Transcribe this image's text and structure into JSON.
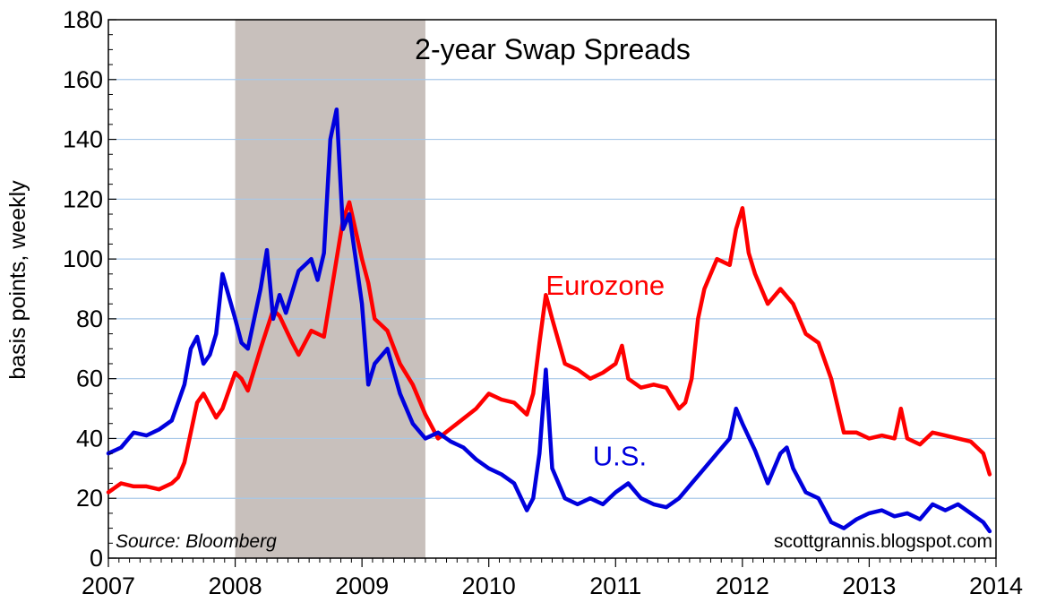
{
  "chart_data": {
    "type": "line",
    "title": "2-year Swap Spreads",
    "ylabel": "basis points, weekly",
    "xlabel": "",
    "xlim": [
      2007,
      2014
    ],
    "ylim": [
      0,
      180
    ],
    "x_ticks": [
      "2007",
      "2008",
      "2009",
      "2010",
      "2011",
      "2012",
      "2013",
      "2014"
    ],
    "y_ticks": [
      "0",
      "20",
      "40",
      "60",
      "80",
      "100",
      "120",
      "140",
      "160",
      "180"
    ],
    "grid": "horizontal",
    "shaded_region": [
      2008.0,
      2009.5
    ],
    "annotations": {
      "source": "Source: Bloomberg",
      "credit": "scottgrannis.blogspot.com"
    },
    "colors": {
      "eurozone": "#ff0000",
      "us": "#0000dd",
      "shade": "#c8c0bc",
      "grid": "#a8c8e8"
    },
    "series": [
      {
        "name": "Eurozone",
        "color": "#ff0000",
        "x": [
          2007.0,
          2007.1,
          2007.2,
          2007.3,
          2007.4,
          2007.5,
          2007.55,
          2007.6,
          2007.7,
          2007.75,
          2007.85,
          2007.9,
          2008.0,
          2008.05,
          2008.1,
          2008.2,
          2008.3,
          2008.35,
          2008.45,
          2008.5,
          2008.6,
          2008.7,
          2008.8,
          2008.85,
          2008.9,
          2009.0,
          2009.05,
          2009.1,
          2009.2,
          2009.3,
          2009.4,
          2009.5,
          2009.6,
          2009.75,
          2009.9,
          2010.0,
          2010.1,
          2010.2,
          2010.3,
          2010.35,
          2010.4,
          2010.45,
          2010.5,
          2010.6,
          2010.7,
          2010.8,
          2010.9,
          2011.0,
          2011.05,
          2011.1,
          2011.2,
          2011.3,
          2011.4,
          2011.5,
          2011.55,
          2011.6,
          2011.65,
          2011.7,
          2011.8,
          2011.9,
          2011.95,
          2012.0,
          2012.05,
          2012.1,
          2012.2,
          2012.3,
          2012.4,
          2012.5,
          2012.6,
          2012.7,
          2012.8,
          2012.9,
          2013.0,
          2013.1,
          2013.2,
          2013.25,
          2013.3,
          2013.4,
          2013.5,
          2013.6,
          2013.7,
          2013.8,
          2013.9,
          2013.95
        ],
        "values": [
          22,
          25,
          24,
          24,
          23,
          25,
          27,
          32,
          52,
          55,
          47,
          50,
          62,
          60,
          56,
          70,
          83,
          81,
          72,
          68,
          76,
          74,
          100,
          113,
          119,
          100,
          92,
          80,
          76,
          65,
          58,
          48,
          40,
          45,
          50,
          55,
          53,
          52,
          48,
          55,
          72,
          88,
          80,
          65,
          63,
          60,
          62,
          65,
          71,
          60,
          57,
          58,
          57,
          50,
          52,
          60,
          80,
          90,
          100,
          98,
          110,
          117,
          102,
          95,
          85,
          90,
          85,
          75,
          72,
          60,
          42,
          42,
          40,
          41,
          40,
          50,
          40,
          38,
          42,
          41,
          40,
          39,
          35,
          28
        ]
      },
      {
        "name": "U.S.",
        "color": "#0000dd",
        "x": [
          2007.0,
          2007.1,
          2007.2,
          2007.3,
          2007.4,
          2007.5,
          2007.6,
          2007.65,
          2007.7,
          2007.75,
          2007.8,
          2007.85,
          2007.9,
          2008.0,
          2008.05,
          2008.1,
          2008.2,
          2008.25,
          2008.3,
          2008.35,
          2008.4,
          2008.5,
          2008.6,
          2008.65,
          2008.7,
          2008.75,
          2008.8,
          2008.85,
          2008.9,
          2008.95,
          2009.0,
          2009.05,
          2009.1,
          2009.2,
          2009.3,
          2009.4,
          2009.5,
          2009.6,
          2009.7,
          2009.8,
          2009.9,
          2010.0,
          2010.1,
          2010.2,
          2010.3,
          2010.35,
          2010.4,
          2010.45,
          2010.5,
          2010.6,
          2010.7,
          2010.8,
          2010.9,
          2011.0,
          2011.1,
          2011.2,
          2011.3,
          2011.4,
          2011.5,
          2011.6,
          2011.7,
          2011.8,
          2011.9,
          2011.95,
          2012.0,
          2012.1,
          2012.2,
          2012.3,
          2012.35,
          2012.4,
          2012.5,
          2012.6,
          2012.7,
          2012.8,
          2012.9,
          2013.0,
          2013.1,
          2013.2,
          2013.3,
          2013.4,
          2013.5,
          2013.6,
          2013.7,
          2013.8,
          2013.9,
          2013.95
        ],
        "values": [
          35,
          37,
          42,
          41,
          43,
          46,
          58,
          70,
          74,
          65,
          68,
          75,
          95,
          80,
          72,
          70,
          90,
          103,
          80,
          88,
          82,
          96,
          100,
          93,
          102,
          140,
          150,
          110,
          115,
          100,
          85,
          58,
          65,
          70,
          55,
          45,
          40,
          42,
          39,
          37,
          33,
          30,
          28,
          25,
          16,
          20,
          35,
          63,
          30,
          20,
          18,
          20,
          18,
          22,
          25,
          20,
          18,
          17,
          20,
          25,
          30,
          35,
          40,
          50,
          45,
          36,
          25,
          35,
          37,
          30,
          22,
          20,
          12,
          10,
          13,
          15,
          16,
          14,
          15,
          13,
          18,
          16,
          18,
          15,
          12,
          9
        ]
      }
    ],
    "series_labels": {
      "eurozone": {
        "text": "Eurozone",
        "x": 2010.45,
        "y": 88
      },
      "us": {
        "text": "U.S.",
        "x": 2010.82,
        "y": 31
      }
    }
  }
}
